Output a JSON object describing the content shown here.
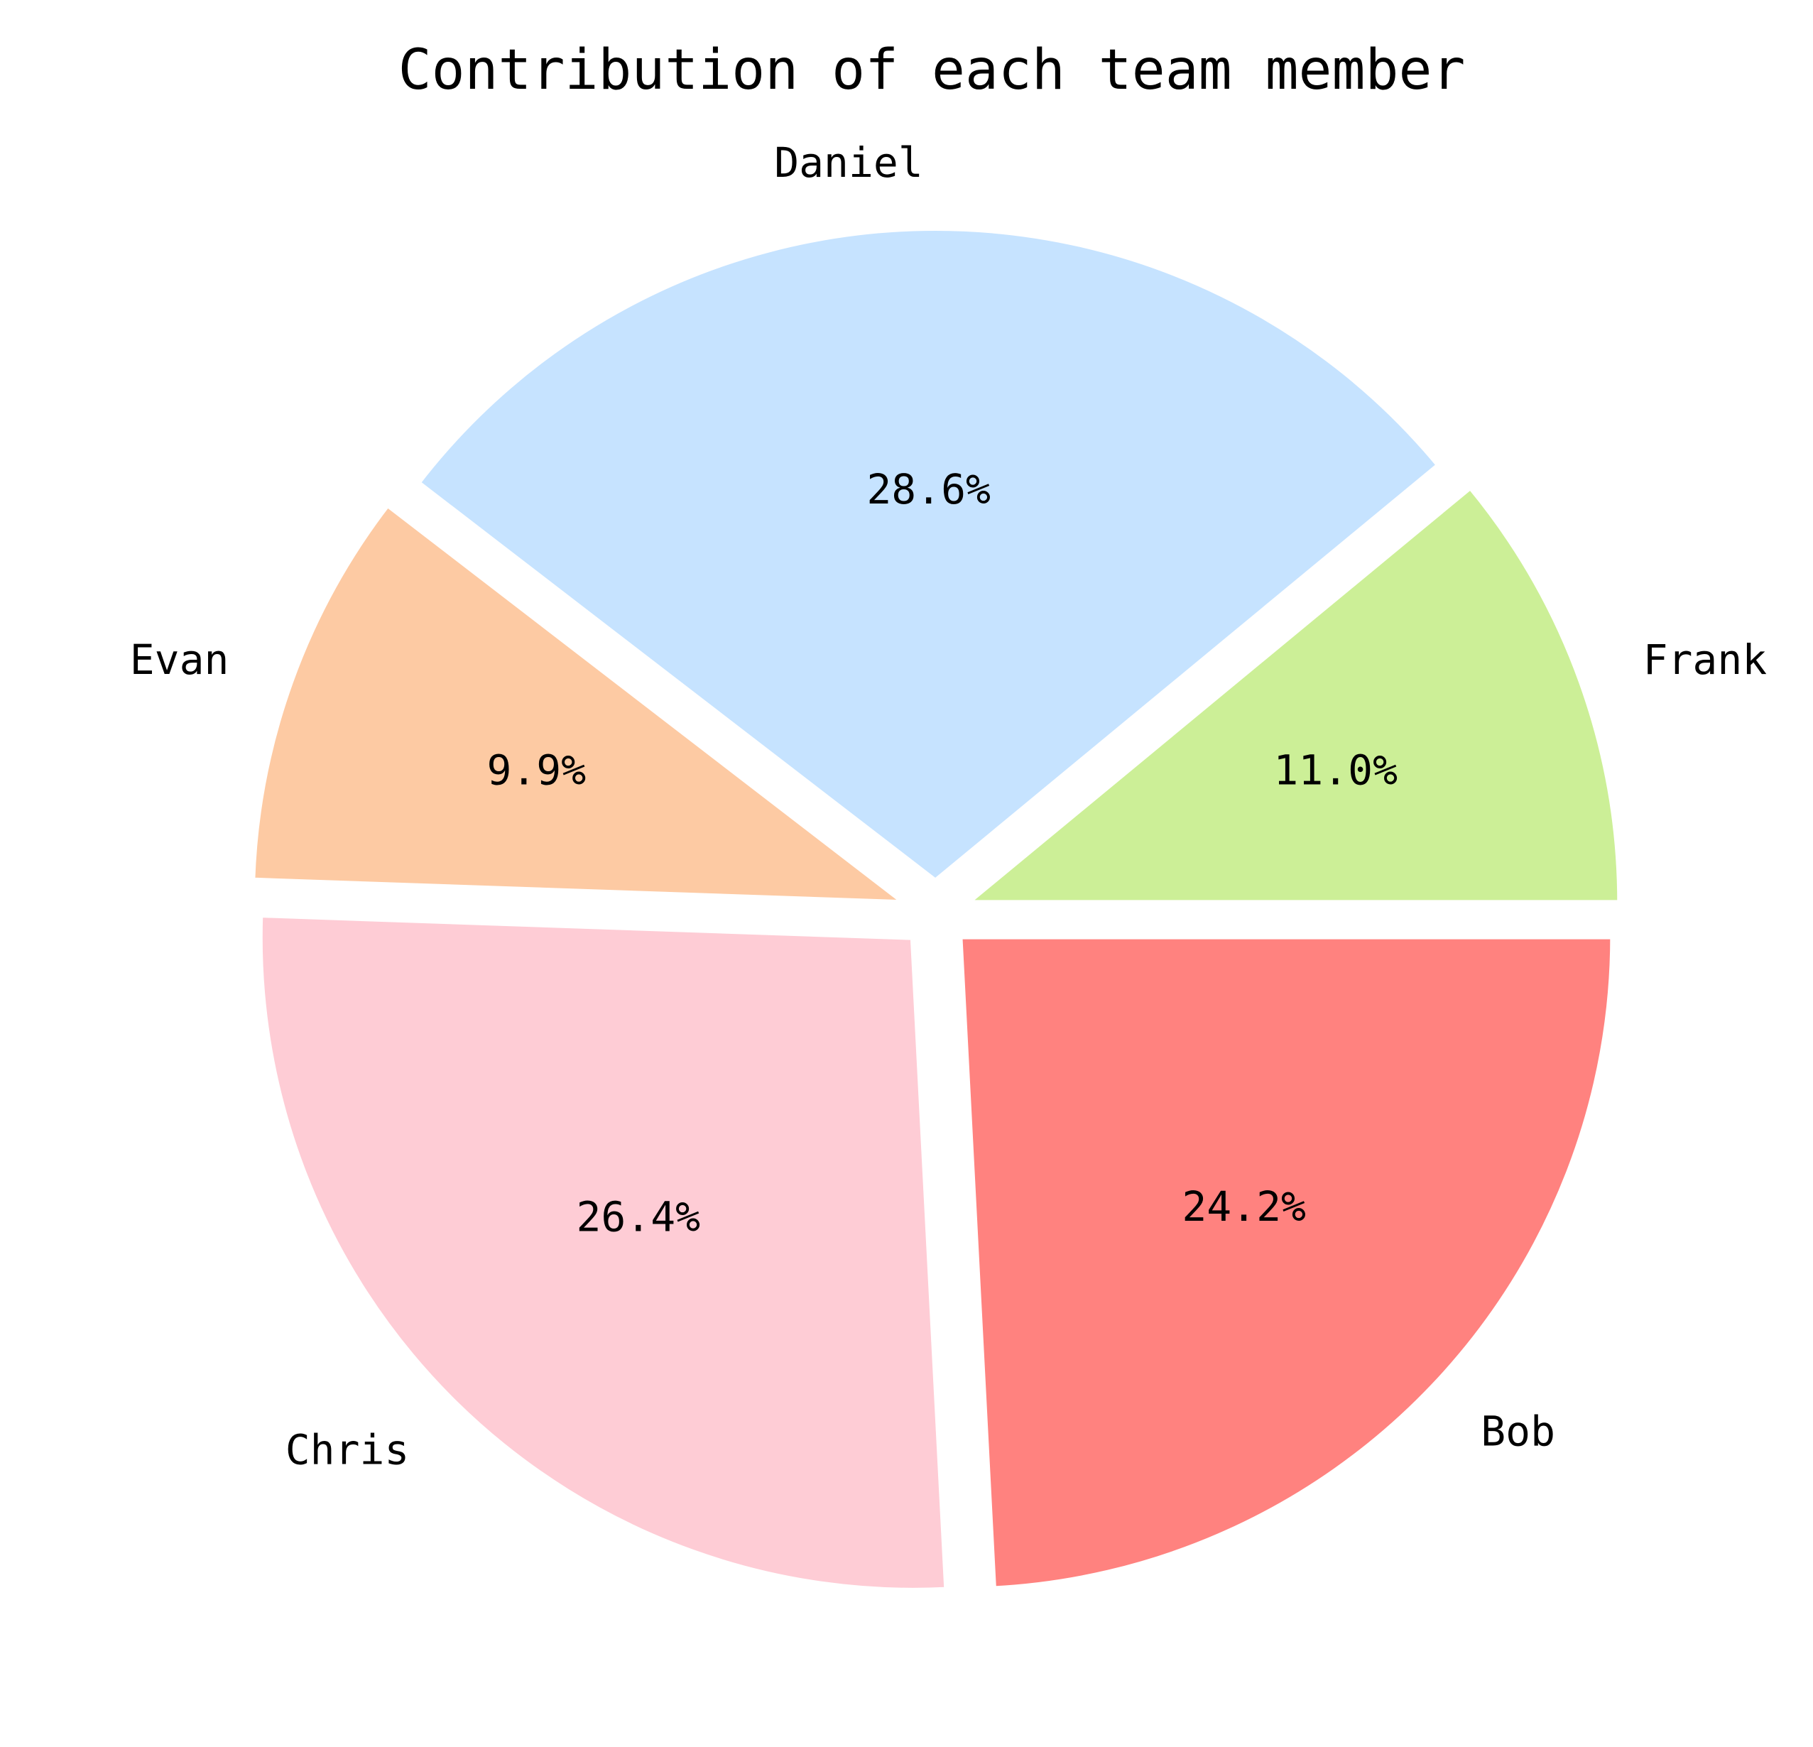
{
  "chart_data": {
    "type": "pie",
    "title": "Contribution of each team member",
    "slices": [
      {
        "name": "Frank",
        "value": 11.0,
        "label": "11.0%",
        "color": "#CCEF97"
      },
      {
        "name": "Daniel",
        "value": 28.6,
        "label": "28.6%",
        "color": "#C6E3FF"
      },
      {
        "name": "Evan",
        "value": 9.9,
        "label": "9.9%",
        "color": "#FDCAA3"
      },
      {
        "name": "Chris",
        "value": 26.4,
        "label": "26.4%",
        "color": "#FECCD5"
      },
      {
        "name": "Bob",
        "value": 24.2,
        "label": "24.2%",
        "color": "#FF827F"
      }
    ],
    "edge_color": "#FFFFFF"
  }
}
